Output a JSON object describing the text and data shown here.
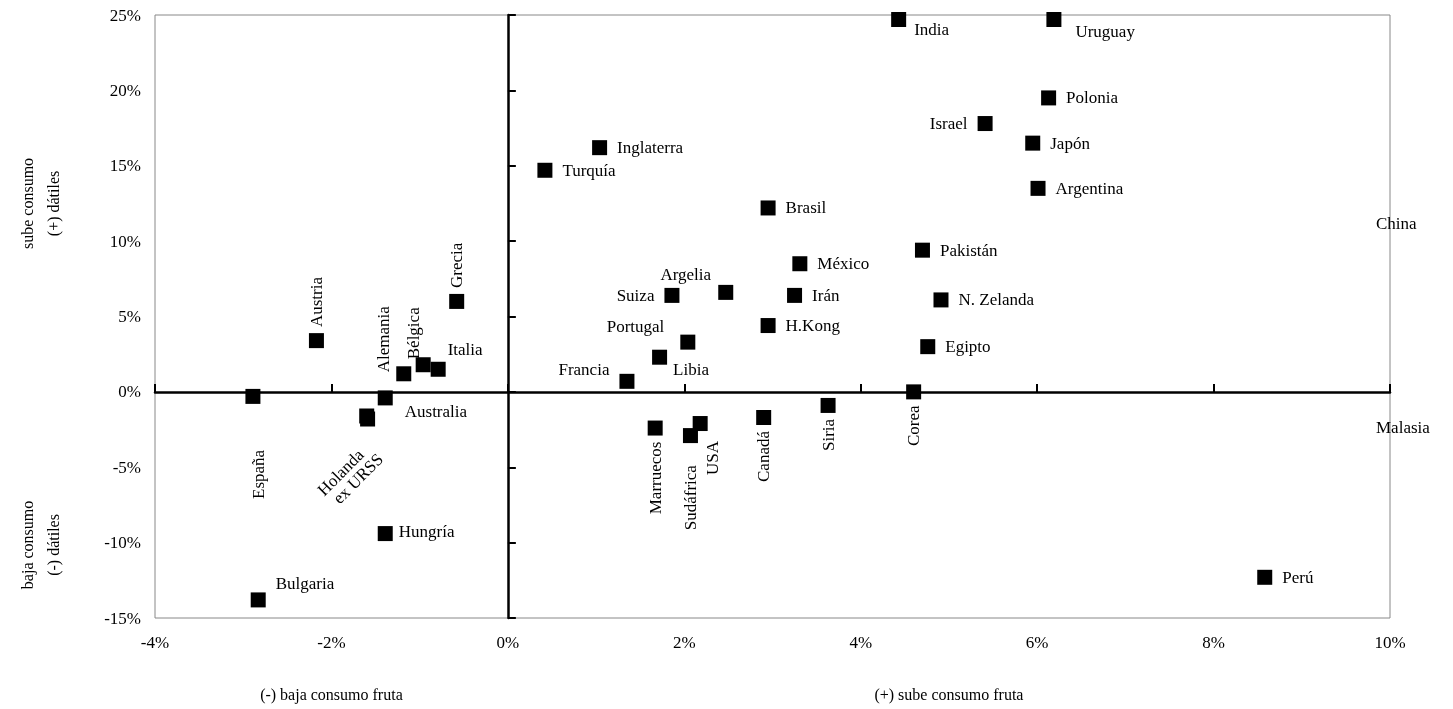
{
  "chart_data": {
    "type": "scatter",
    "marker": "square",
    "xlim": [
      -4,
      10
    ],
    "ylim": [
      -15,
      25
    ],
    "xticks": [
      {
        "value": -4,
        "label": "-4%"
      },
      {
        "value": -2,
        "label": "-2%"
      },
      {
        "value": 0,
        "label": "0%"
      },
      {
        "value": 2,
        "label": "2%"
      },
      {
        "value": 4,
        "label": "4%"
      },
      {
        "value": 6,
        "label": "6%"
      },
      {
        "value": 8,
        "label": "8%"
      },
      {
        "value": 10,
        "label": "10%"
      }
    ],
    "yticks": [
      {
        "value": -15,
        "label": "-15%"
      },
      {
        "value": -10,
        "label": "-10%"
      },
      {
        "value": -5,
        "label": "-5%"
      },
      {
        "value": 0,
        "label": "0%"
      },
      {
        "value": 5,
        "label": "5%"
      },
      {
        "value": 10,
        "label": "10%"
      },
      {
        "value": 15,
        "label": "15%"
      },
      {
        "value": 20,
        "label": "20%"
      },
      {
        "value": 25,
        "label": "25%"
      }
    ],
    "x": [
      4.43,
      6.19,
      6.13,
      5.41,
      5.95,
      6.01,
      4.7,
      4.91,
      4.76,
      4.6,
      2.95,
      3.31,
      3.25,
      2.95,
      3.63,
      2.9,
      1.04,
      0.42,
      1.86,
      2.47,
      2.04,
      1.72,
      1.35,
      1.67,
      2.07,
      2.18,
      8.58,
      -0.58,
      -0.79,
      -0.96,
      -1.18,
      -2.17,
      -2.89,
      -1.39,
      -1.6,
      -1.59,
      -1.39,
      -2.83
    ],
    "values": [
      24.7,
      24.7,
      19.5,
      17.8,
      16.5,
      13.5,
      9.4,
      6.1,
      3.0,
      0,
      12.2,
      8.5,
      6.4,
      4.4,
      -0.9,
      -1.7,
      16.2,
      14.7,
      6.4,
      6.6,
      3.3,
      2.3,
      0.7,
      -2.4,
      -2.9,
      -2.1,
      -12.3,
      6.0,
      1.5,
      1.8,
      1.2,
      3.4,
      -0.3,
      -0.4,
      -1.6,
      -1.8,
      -9.4,
      -13.8
    ],
    "value_labels": [
      "India",
      "Uruguay",
      "Polonia",
      "Israel",
      "Japón",
      "Argentina",
      "Pakistán",
      "N. Zelanda",
      "Egipto",
      "Corea",
      "Brasil",
      "México",
      "Irán",
      "H.Kong",
      "Siria",
      "Canadá",
      "Inglaterra",
      "Turquía",
      "Suiza",
      "Argelia",
      "Portugal",
      "Libia",
      "Francia",
      "Marruecos",
      "Sudáfrica",
      "USA",
      "Perú",
      "Grecia",
      "Italia",
      "Bélgica",
      "Alemania",
      "Austria",
      "España",
      "Australia",
      "Holanda",
      "ex URSS",
      "Hungría",
      "Bulgaria"
    ],
    "color": "#000000",
    "annotations": [
      "sube consumo\n(+) dátiles",
      "baja consumo\n(-) dátiles",
      "(-) baja consumo fruta",
      "(+) sube consumo fruta",
      "China",
      "Malasia"
    ]
  }
}
